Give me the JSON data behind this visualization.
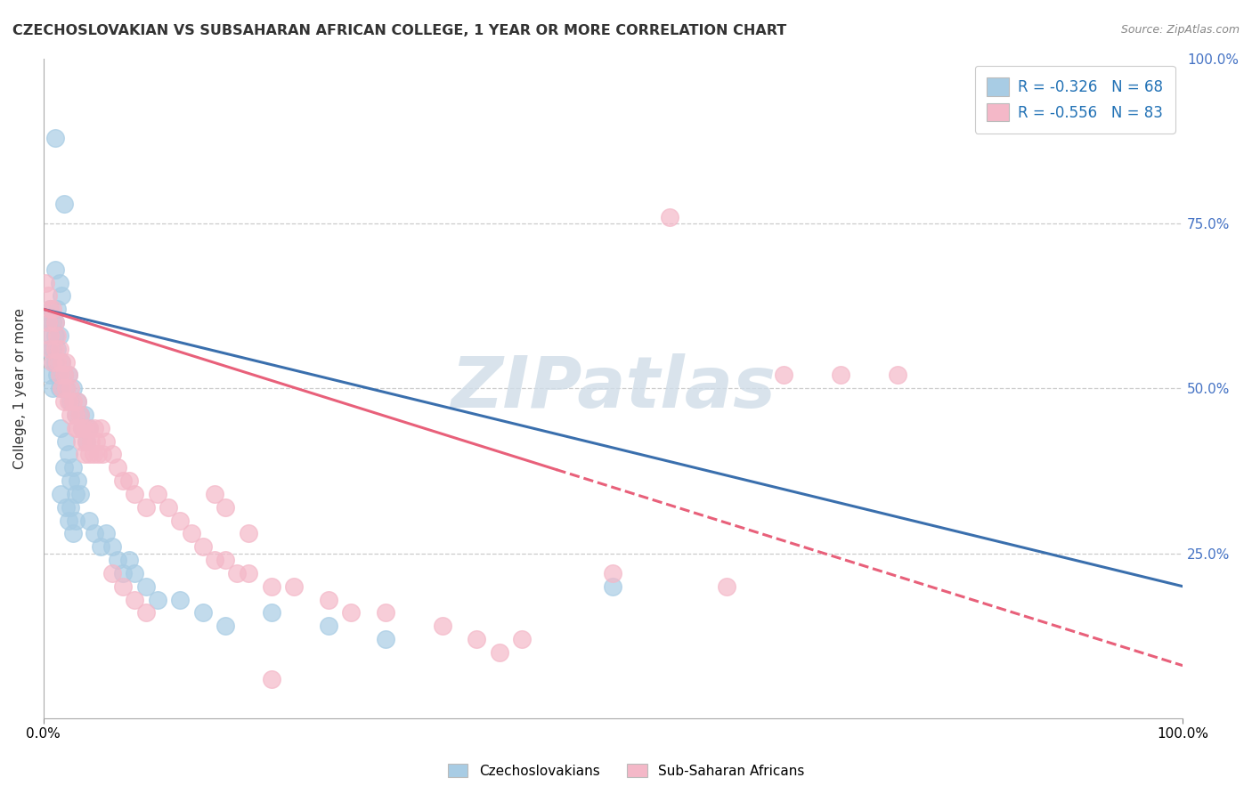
{
  "title": "CZECHOSLOVAKIAN VS SUBSAHARAN AFRICAN COLLEGE, 1 YEAR OR MORE CORRELATION CHART",
  "source": "Source: ZipAtlas.com",
  "ylabel": "College, 1 year or more",
  "r1": -0.326,
  "n1": 68,
  "r2": -0.556,
  "n2": 83,
  "color_blue": "#a8cce4",
  "color_pink": "#f4b8c8",
  "line_color_blue": "#3a6fad",
  "line_color_pink": "#e8607a",
  "watermark": "ZIPatlas",
  "legend_label1": "Czechoslovakians",
  "legend_label2": "Sub-Saharan Africans",
  "blue_points": [
    [
      0.01,
      0.88
    ],
    [
      0.018,
      0.78
    ],
    [
      0.01,
      0.68
    ],
    [
      0.014,
      0.66
    ],
    [
      0.016,
      0.64
    ],
    [
      0.01,
      0.6
    ],
    [
      0.012,
      0.62
    ],
    [
      0.014,
      0.58
    ],
    [
      0.01,
      0.58
    ],
    [
      0.012,
      0.56
    ],
    [
      0.008,
      0.6
    ],
    [
      0.006,
      0.62
    ],
    [
      0.008,
      0.56
    ],
    [
      0.01,
      0.54
    ],
    [
      0.006,
      0.58
    ],
    [
      0.008,
      0.54
    ],
    [
      0.004,
      0.6
    ],
    [
      0.004,
      0.56
    ],
    [
      0.006,
      0.52
    ],
    [
      0.008,
      0.5
    ],
    [
      0.012,
      0.52
    ],
    [
      0.014,
      0.5
    ],
    [
      0.016,
      0.54
    ],
    [
      0.018,
      0.52
    ],
    [
      0.02,
      0.5
    ],
    [
      0.022,
      0.52
    ],
    [
      0.024,
      0.48
    ],
    [
      0.026,
      0.5
    ],
    [
      0.028,
      0.46
    ],
    [
      0.03,
      0.48
    ],
    [
      0.032,
      0.46
    ],
    [
      0.034,
      0.44
    ],
    [
      0.036,
      0.46
    ],
    [
      0.038,
      0.42
    ],
    [
      0.04,
      0.44
    ],
    [
      0.015,
      0.44
    ],
    [
      0.02,
      0.42
    ],
    [
      0.022,
      0.4
    ],
    [
      0.018,
      0.38
    ],
    [
      0.024,
      0.36
    ],
    [
      0.026,
      0.38
    ],
    [
      0.028,
      0.34
    ],
    [
      0.03,
      0.36
    ],
    [
      0.032,
      0.34
    ],
    [
      0.015,
      0.34
    ],
    [
      0.02,
      0.32
    ],
    [
      0.022,
      0.3
    ],
    [
      0.024,
      0.32
    ],
    [
      0.026,
      0.28
    ],
    [
      0.028,
      0.3
    ],
    [
      0.04,
      0.3
    ],
    [
      0.045,
      0.28
    ],
    [
      0.05,
      0.26
    ],
    [
      0.055,
      0.28
    ],
    [
      0.06,
      0.26
    ],
    [
      0.065,
      0.24
    ],
    [
      0.07,
      0.22
    ],
    [
      0.075,
      0.24
    ],
    [
      0.08,
      0.22
    ],
    [
      0.09,
      0.2
    ],
    [
      0.1,
      0.18
    ],
    [
      0.12,
      0.18
    ],
    [
      0.14,
      0.16
    ],
    [
      0.16,
      0.14
    ],
    [
      0.2,
      0.16
    ],
    [
      0.25,
      0.14
    ],
    [
      0.3,
      0.12
    ],
    [
      0.5,
      0.2
    ]
  ],
  "pink_points": [
    [
      0.002,
      0.66
    ],
    [
      0.004,
      0.64
    ],
    [
      0.006,
      0.62
    ],
    [
      0.004,
      0.6
    ],
    [
      0.006,
      0.58
    ],
    [
      0.008,
      0.62
    ],
    [
      0.006,
      0.56
    ],
    [
      0.008,
      0.54
    ],
    [
      0.01,
      0.6
    ],
    [
      0.01,
      0.56
    ],
    [
      0.012,
      0.58
    ],
    [
      0.012,
      0.54
    ],
    [
      0.014,
      0.56
    ],
    [
      0.014,
      0.52
    ],
    [
      0.016,
      0.54
    ],
    [
      0.016,
      0.5
    ],
    [
      0.018,
      0.52
    ],
    [
      0.018,
      0.48
    ],
    [
      0.02,
      0.5
    ],
    [
      0.02,
      0.54
    ],
    [
      0.022,
      0.52
    ],
    [
      0.022,
      0.48
    ],
    [
      0.024,
      0.5
    ],
    [
      0.024,
      0.46
    ],
    [
      0.026,
      0.48
    ],
    [
      0.028,
      0.46
    ],
    [
      0.028,
      0.44
    ],
    [
      0.03,
      0.48
    ],
    [
      0.03,
      0.44
    ],
    [
      0.032,
      0.46
    ],
    [
      0.034,
      0.44
    ],
    [
      0.034,
      0.42
    ],
    [
      0.036,
      0.44
    ],
    [
      0.036,
      0.4
    ],
    [
      0.038,
      0.42
    ],
    [
      0.04,
      0.4
    ],
    [
      0.04,
      0.44
    ],
    [
      0.042,
      0.42
    ],
    [
      0.044,
      0.4
    ],
    [
      0.045,
      0.44
    ],
    [
      0.046,
      0.42
    ],
    [
      0.048,
      0.4
    ],
    [
      0.05,
      0.44
    ],
    [
      0.052,
      0.4
    ],
    [
      0.055,
      0.42
    ],
    [
      0.06,
      0.4
    ],
    [
      0.065,
      0.38
    ],
    [
      0.07,
      0.36
    ],
    [
      0.075,
      0.36
    ],
    [
      0.08,
      0.34
    ],
    [
      0.09,
      0.32
    ],
    [
      0.1,
      0.34
    ],
    [
      0.11,
      0.32
    ],
    [
      0.12,
      0.3
    ],
    [
      0.13,
      0.28
    ],
    [
      0.14,
      0.26
    ],
    [
      0.15,
      0.24
    ],
    [
      0.16,
      0.24
    ],
    [
      0.17,
      0.22
    ],
    [
      0.18,
      0.22
    ],
    [
      0.2,
      0.2
    ],
    [
      0.22,
      0.2
    ],
    [
      0.25,
      0.18
    ],
    [
      0.27,
      0.16
    ],
    [
      0.3,
      0.16
    ],
    [
      0.35,
      0.14
    ],
    [
      0.38,
      0.12
    ],
    [
      0.4,
      0.1
    ],
    [
      0.42,
      0.12
    ],
    [
      0.15,
      0.34
    ],
    [
      0.16,
      0.32
    ],
    [
      0.18,
      0.28
    ],
    [
      0.06,
      0.22
    ],
    [
      0.07,
      0.2
    ],
    [
      0.08,
      0.18
    ],
    [
      0.09,
      0.16
    ],
    [
      0.55,
      0.76
    ],
    [
      0.65,
      0.52
    ],
    [
      0.7,
      0.52
    ],
    [
      0.75,
      0.52
    ],
    [
      0.2,
      0.06
    ],
    [
      0.5,
      0.22
    ],
    [
      0.6,
      0.2
    ]
  ]
}
